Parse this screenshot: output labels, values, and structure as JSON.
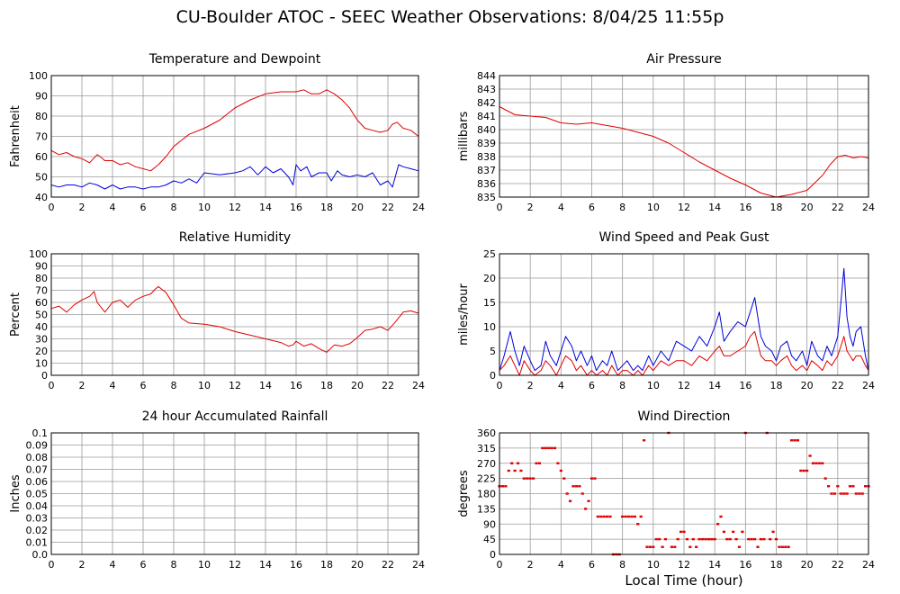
{
  "title": "CU-Boulder ATOC - SEEC Weather Observations: 8/04/25 11:55p",
  "xlabel": "Local Time (hour)",
  "colors": {
    "red": "#e00000",
    "blue": "#0000dd",
    "grid": "#9a9a9a"
  },
  "chart_data": [
    {
      "type": "line",
      "title": "Temperature and Dewpoint",
      "ylabel": "Fahrenheit",
      "xlim": [
        0,
        24
      ],
      "ylim": [
        40,
        100
      ],
      "xticks": [
        "0",
        "2",
        "4",
        "6",
        "8",
        "10",
        "12",
        "14",
        "16",
        "18",
        "20",
        "22",
        "24"
      ],
      "yticks": [
        "40",
        "50",
        "60",
        "70",
        "80",
        "90",
        "100"
      ],
      "grid": true,
      "series": [
        {
          "color": "#e00000",
          "x": [
            0,
            0.5,
            1,
            1.5,
            2,
            2.5,
            3,
            3.2,
            3.5,
            4,
            4.5,
            5,
            5.5,
            6,
            6.5,
            7,
            7.5,
            8,
            8.5,
            9,
            10,
            11,
            12,
            13,
            14,
            15,
            16,
            16.5,
            17,
            17.5,
            18,
            18.5,
            19,
            19.5,
            20,
            20.5,
            21,
            21.5,
            22,
            22.3,
            22.6,
            23,
            23.5,
            24
          ],
          "y": [
            63,
            61,
            62,
            60,
            59,
            57,
            61,
            60,
            58,
            58,
            56,
            57,
            55,
            54,
            53,
            56,
            60,
            65,
            68,
            71,
            74,
            78,
            84,
            88,
            91,
            92,
            92,
            93,
            91,
            91,
            93,
            91,
            88,
            84,
            78,
            74,
            73,
            72,
            73,
            76,
            77,
            74,
            73,
            70
          ]
        },
        {
          "color": "#0000dd",
          "x": [
            0,
            0.5,
            1,
            1.5,
            2,
            2.5,
            3,
            3.5,
            4,
            4.5,
            5,
            5.5,
            6,
            6.5,
            7,
            7.5,
            8,
            8.5,
            9,
            9.5,
            10,
            11,
            12,
            12.5,
            13,
            13.5,
            14,
            14.5,
            15,
            15.5,
            15.8,
            16,
            16.3,
            16.7,
            17,
            17.5,
            18,
            18.3,
            18.7,
            19,
            19.5,
            20,
            20.5,
            21,
            21.5,
            22,
            22.3,
            22.7,
            23,
            23.5,
            24
          ],
          "y": [
            46,
            45,
            46,
            46,
            45,
            47,
            46,
            44,
            46,
            44,
            45,
            45,
            44,
            45,
            45,
            46,
            48,
            47,
            49,
            47,
            52,
            51,
            52,
            53,
            55,
            51,
            55,
            52,
            54,
            50,
            46,
            56,
            53,
            55,
            50,
            52,
            52,
            48,
            53,
            51,
            50,
            51,
            50,
            52,
            46,
            48,
            45,
            56,
            55,
            54,
            53
          ]
        }
      ]
    },
    {
      "type": "line",
      "title": "Air Pressure",
      "ylabel": "millibars",
      "xlim": [
        0,
        24
      ],
      "ylim": [
        835,
        844
      ],
      "xticks": [
        "0",
        "2",
        "4",
        "6",
        "8",
        "10",
        "12",
        "14",
        "16",
        "18",
        "20",
        "22",
        "24"
      ],
      "yticks": [
        "835",
        "836",
        "837",
        "838",
        "839",
        "840",
        "841",
        "842",
        "843",
        "844"
      ],
      "grid": true,
      "series": [
        {
          "color": "#e00000",
          "x": [
            0,
            1,
            2,
            3,
            4,
            5,
            6,
            7,
            8,
            9,
            10,
            11,
            12,
            13,
            14,
            15,
            16,
            17,
            18,
            19,
            20,
            21,
            21.5,
            22,
            22.5,
            23,
            23.5,
            24
          ],
          "y": [
            841.7,
            841.1,
            841,
            840.9,
            840.5,
            840.4,
            840.5,
            840.3,
            840.1,
            839.8,
            839.5,
            839,
            838.3,
            837.6,
            837,
            836.4,
            835.9,
            835.3,
            835,
            835.2,
            835.5,
            836.6,
            837.4,
            838,
            838.1,
            837.9,
            838,
            837.9
          ]
        }
      ]
    },
    {
      "type": "line",
      "title": "Relative Humidity",
      "ylabel": "Percent",
      "xlim": [
        0,
        24
      ],
      "ylim": [
        0,
        100
      ],
      "xticks": [
        "0",
        "2",
        "4",
        "6",
        "8",
        "10",
        "12",
        "14",
        "16",
        "18",
        "20",
        "22",
        "24"
      ],
      "yticks": [
        "0",
        "10",
        "20",
        "30",
        "40",
        "50",
        "60",
        "70",
        "80",
        "90",
        "100"
      ],
      "grid": true,
      "series": [
        {
          "color": "#e00000",
          "x": [
            0,
            0.5,
            1,
            1.5,
            2,
            2.5,
            2.8,
            3,
            3.5,
            4,
            4.5,
            5,
            5.5,
            6,
            6.5,
            6.8,
            7,
            7.5,
            8,
            8.5,
            9,
            10,
            11,
            12,
            13,
            14,
            15,
            15.5,
            15.8,
            16,
            16.5,
            17,
            17.5,
            18,
            18.5,
            19,
            19.5,
            20,
            20.5,
            21,
            21.5,
            22,
            22.5,
            23,
            23.5,
            24
          ],
          "y": [
            55,
            57,
            52,
            58,
            62,
            65,
            69,
            60,
            52,
            60,
            62,
            56,
            62,
            65,
            67,
            71,
            73,
            68,
            58,
            47,
            43,
            42,
            40,
            36,
            33,
            30,
            27,
            24,
            25,
            28,
            24,
            26,
            22,
            19,
            25,
            24,
            26,
            31,
            37,
            38,
            40,
            37,
            44,
            52,
            53,
            51
          ]
        }
      ]
    },
    {
      "type": "line",
      "title": "Wind Speed and Peak Gust",
      "ylabel": "miles/hour",
      "xlim": [
        0,
        24
      ],
      "ylim": [
        0,
        25
      ],
      "xticks": [
        "0",
        "2",
        "4",
        "6",
        "8",
        "10",
        "12",
        "14",
        "16",
        "18",
        "20",
        "22",
        "24"
      ],
      "yticks": [
        "0",
        "5",
        "10",
        "15",
        "20",
        "25"
      ],
      "grid": true,
      "series": [
        {
          "color": "#0000dd",
          "x": [
            0,
            0.3,
            0.7,
            1,
            1.3,
            1.6,
            2,
            2.3,
            2.7,
            3,
            3.3,
            3.7,
            4,
            4.3,
            4.7,
            5,
            5.3,
            5.7,
            6,
            6.3,
            6.7,
            7,
            7.3,
            7.7,
            8,
            8.3,
            8.7,
            9,
            9.3,
            9.7,
            10,
            10.5,
            11,
            11.5,
            12,
            12.5,
            13,
            13.5,
            14,
            14.3,
            14.6,
            15,
            15.5,
            16,
            16.3,
            16.6,
            17,
            17.3,
            17.7,
            18,
            18.3,
            18.7,
            19,
            19.3,
            19.7,
            20,
            20.3,
            20.7,
            21,
            21.3,
            21.6,
            22,
            22.2,
            22.4,
            22.6,
            22.8,
            23,
            23.2,
            23.5,
            23.8,
            24
          ],
          "y": [
            1,
            4,
            9,
            5,
            2,
            6,
            3,
            1,
            2,
            7,
            4,
            2,
            5,
            8,
            6,
            3,
            5,
            2,
            4,
            1,
            3,
            2,
            5,
            1,
            2,
            3,
            1,
            2,
            1,
            4,
            2,
            5,
            3,
            7,
            6,
            5,
            8,
            6,
            10,
            13,
            7,
            9,
            11,
            10,
            13,
            16,
            8,
            6,
            5,
            3,
            6,
            7,
            4,
            3,
            5,
            2,
            7,
            4,
            3,
            6,
            4,
            8,
            15,
            22,
            12,
            8,
            6,
            9,
            10,
            4,
            1
          ]
        },
        {
          "color": "#e00000",
          "x": [
            0,
            0.3,
            0.7,
            1,
            1.3,
            1.6,
            2,
            2.3,
            2.7,
            3,
            3.3,
            3.7,
            4,
            4.3,
            4.7,
            5,
            5.3,
            5.7,
            6,
            6.3,
            6.7,
            7,
            7.3,
            7.7,
            8,
            8.3,
            8.7,
            9,
            9.3,
            9.7,
            10,
            10.5,
            11,
            11.5,
            12,
            12.5,
            13,
            13.5,
            14,
            14.3,
            14.6,
            15,
            15.5,
            16,
            16.3,
            16.6,
            17,
            17.3,
            17.7,
            18,
            18.3,
            18.7,
            19,
            19.3,
            19.7,
            20,
            20.3,
            20.7,
            21,
            21.3,
            21.6,
            22,
            22.2,
            22.4,
            22.6,
            22.8,
            23,
            23.2,
            23.5,
            23.8,
            24
          ],
          "y": [
            1,
            2,
            4,
            2,
            0,
            3,
            1,
            0,
            1,
            3,
            2,
            0,
            2,
            4,
            3,
            1,
            2,
            0,
            1,
            0,
            1,
            0,
            2,
            0,
            1,
            1,
            0,
            1,
            0,
            2,
            1,
            3,
            2,
            3,
            3,
            2,
            4,
            3,
            5,
            6,
            4,
            4,
            5,
            6,
            8,
            9,
            4,
            3,
            3,
            2,
            3,
            4,
            2,
            1,
            2,
            1,
            3,
            2,
            1,
            3,
            2,
            4,
            6,
            8,
            5,
            4,
            3,
            4,
            4,
            2,
            1
          ]
        }
      ]
    },
    {
      "type": "line",
      "title": "24 hour Accumulated Rainfall",
      "ylabel": "Inches",
      "xlim": [
        0,
        24
      ],
      "ylim": [
        0,
        0.1
      ],
      "xticks": [
        "0",
        "2",
        "4",
        "6",
        "8",
        "10",
        "12",
        "14",
        "16",
        "18",
        "20",
        "22",
        "24"
      ],
      "yticks": [
        "0.0",
        "0.01",
        "0.02",
        "0.03",
        "0.04",
        "0.05",
        "0.06",
        "0.07",
        "0.08",
        "0.09",
        "0.1"
      ],
      "grid": true,
      "series": [
        {
          "color": "#e00000",
          "x": [
            0,
            24
          ],
          "y": [
            0,
            0
          ]
        }
      ]
    },
    {
      "type": "scatter",
      "title": "Wind Direction",
      "ylabel": "degrees",
      "xlim": [
        0,
        24
      ],
      "ylim": [
        0,
        360
      ],
      "xticks": [
        "0",
        "2",
        "4",
        "6",
        "8",
        "10",
        "12",
        "14",
        "16",
        "18",
        "20",
        "22",
        "24"
      ],
      "yticks": [
        "0",
        "45",
        "90",
        "135",
        "180",
        "225",
        "270",
        "315",
        "360"
      ],
      "grid": true,
      "series": [
        {
          "color": "#e00000",
          "x": [
            0,
            0.2,
            0.4,
            0.6,
            0.8,
            1,
            1.2,
            1.4,
            1.6,
            1.8,
            2,
            2.2,
            2.4,
            2.6,
            2.8,
            3,
            3.2,
            3.4,
            3.6,
            3.8,
            4,
            4.2,
            4.4,
            4.6,
            4.8,
            5,
            5.2,
            5.4,
            5.6,
            5.8,
            6,
            6.2,
            6.4,
            6.6,
            6.8,
            7,
            7.2,
            7.4,
            7.6,
            7.8,
            8,
            8.2,
            8.4,
            8.6,
            8.8,
            9,
            9.2,
            9.4,
            9.6,
            9.8,
            10,
            10.2,
            10.4,
            10.6,
            10.8,
            11,
            11.2,
            11.4,
            11.6,
            11.8,
            12,
            12.2,
            12.4,
            12.6,
            12.8,
            13,
            13.2,
            13.4,
            13.6,
            13.8,
            14,
            14.2,
            14.4,
            14.6,
            14.8,
            15,
            15.2,
            15.4,
            15.6,
            15.8,
            16,
            16.2,
            16.4,
            16.6,
            16.8,
            17,
            17.2,
            17.4,
            17.6,
            17.8,
            18,
            18.2,
            18.4,
            18.6,
            18.8,
            19,
            19.2,
            19.4,
            19.6,
            19.8,
            20,
            20.2,
            20.4,
            20.6,
            20.8,
            21,
            21.2,
            21.4,
            21.6,
            21.8,
            22,
            22.2,
            22.4,
            22.6,
            22.8,
            23,
            23.2,
            23.4,
            23.6,
            23.8,
            24
          ],
          "y": [
            202,
            202,
            202,
            248,
            270,
            248,
            270,
            248,
            225,
            225,
            225,
            225,
            270,
            270,
            315,
            315,
            315,
            315,
            315,
            270,
            248,
            225,
            180,
            158,
            202,
            202,
            202,
            180,
            135,
            158,
            225,
            225,
            112,
            112,
            112,
            112,
            112,
            0,
            0,
            0,
            112,
            112,
            112,
            112,
            112,
            90,
            112,
            338,
            22,
            22,
            22,
            45,
            45,
            22,
            45,
            360,
            22,
            22,
            45,
            67,
            67,
            45,
            22,
            45,
            22,
            45,
            45,
            45,
            45,
            45,
            45,
            90,
            112,
            67,
            45,
            45,
            67,
            45,
            22,
            67,
            360,
            45,
            45,
            45,
            22,
            45,
            45,
            360,
            45,
            67,
            45,
            22,
            22,
            22,
            22,
            338,
            338,
            338,
            248,
            248,
            248,
            292,
            270,
            270,
            270,
            270,
            225,
            202,
            180,
            180,
            202,
            180,
            180,
            180,
            202,
            202,
            180,
            180,
            180,
            202,
            202
          ]
        }
      ]
    }
  ]
}
